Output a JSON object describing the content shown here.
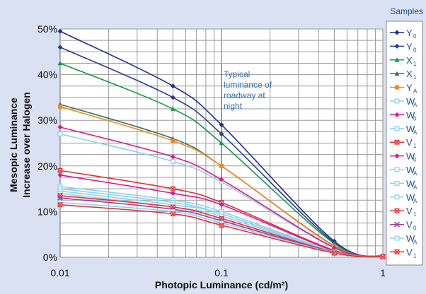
{
  "chart_data": {
    "type": "line",
    "xscale": "log",
    "xlim": [
      0.01,
      1
    ],
    "ylim": [
      0,
      50
    ],
    "x_ticks": [
      {
        "v": 0.01,
        "label": "0.01"
      },
      {
        "v": 0.1,
        "label": "0.1"
      },
      {
        "v": 1,
        "label": "1"
      }
    ],
    "y_ticks": [
      {
        "v": 0,
        "label": "0%"
      },
      {
        "v": 10,
        "label": "10%"
      },
      {
        "v": 20,
        "label": "20%"
      },
      {
        "v": 30,
        "label": "30%"
      },
      {
        "v": 40,
        "label": "40%"
      },
      {
        "v": 50,
        "label": "50%"
      }
    ],
    "xlabel": "Photopic Luminance (cd/m²)",
    "ylabel_lines": [
      "Mesopic Luminance",
      "Increase over Halogen"
    ],
    "legend_title": "Samples",
    "legend_position": "right",
    "grid": true,
    "annotation": {
      "x": 0.1,
      "lines": [
        "Typical",
        "luminance of",
        "roadway at",
        "night"
      ]
    },
    "x": [
      0.01,
      0.05,
      0.1,
      0.5,
      1
    ],
    "series": [
      {
        "name": "Y",
        "sub": "0",
        "color": "#1f2e8c",
        "marker": "diamond",
        "values": [
          49.5,
          37.5,
          29.0,
          3.5,
          0.2
        ]
      },
      {
        "name": "Y",
        "sub": "0",
        "color": "#2c3a96",
        "marker": "diamond",
        "values": [
          46.0,
          35.0,
          27.0,
          3.2,
          0.2
        ]
      },
      {
        "name": "X",
        "sub": "1",
        "color": "#119a49",
        "marker": "triangle",
        "values": [
          42.5,
          32.5,
          25.0,
          3.0,
          0.2
        ]
      },
      {
        "name": "X",
        "sub": "1",
        "color": "#3f6f6a",
        "marker": "triangle",
        "values": [
          33.5,
          26.0,
          20.0,
          2.5,
          0.2
        ]
      },
      {
        "name": "Y",
        "sub": "A",
        "color": "#f08a1c",
        "marker": "square",
        "values": [
          33.0,
          25.5,
          20.0,
          2.4,
          0.2
        ]
      },
      {
        "name": "W",
        "sub": "A",
        "color": "#8fd0ee",
        "marker": "open-square",
        "values": [
          27.0,
          21.0,
          16.5,
          2.0,
          0.2
        ]
      },
      {
        "name": "W",
        "sub": "0",
        "color": "#e0168f",
        "marker": "diamond",
        "values": [
          28.5,
          22.0,
          17.0,
          2.1,
          0.2
        ]
      },
      {
        "name": "W",
        "sub": "A",
        "color": "#8fd0ee",
        "marker": "open-square",
        "values": [
          15.5,
          12.5,
          10.0,
          1.3,
          0.1
        ]
      },
      {
        "name": "V",
        "sub": "1",
        "color": "#e03030",
        "marker": "x-square",
        "values": [
          19.0,
          15.0,
          12.0,
          1.5,
          0.1
        ]
      },
      {
        "name": "W",
        "sub": "0",
        "color": "#d8179a",
        "marker": "diamond",
        "values": [
          18.0,
          14.0,
          11.5,
          1.4,
          0.1
        ]
      },
      {
        "name": "W",
        "sub": "A",
        "color": "#8fd0ee",
        "marker": "open-square",
        "values": [
          15.0,
          12.0,
          9.5,
          1.2,
          0.1
        ]
      },
      {
        "name": "W",
        "sub": "A",
        "color": "#8fd0ee",
        "marker": "open-square",
        "values": [
          14.5,
          11.5,
          9.5,
          1.2,
          0.1
        ]
      },
      {
        "name": "W",
        "sub": "A",
        "color": "#8fd0ee",
        "marker": "open-square",
        "values": [
          14.0,
          11.0,
          9.0,
          1.1,
          0.1
        ]
      },
      {
        "name": "V",
        "sub": "1",
        "color": "#e03030",
        "marker": "x-square",
        "values": [
          13.5,
          11.0,
          8.5,
          1.1,
          0.1
        ]
      },
      {
        "name": "V",
        "sub": "0",
        "color": "#9b3ba0",
        "marker": "x",
        "values": [
          13.0,
          10.5,
          8.0,
          1.0,
          0.1
        ]
      },
      {
        "name": "W",
        "sub": "A",
        "color": "#8fd0ee",
        "marker": "open-square",
        "values": [
          12.0,
          10.0,
          7.5,
          1.0,
          0.1
        ]
      },
      {
        "name": "V",
        "sub": "1",
        "color": "#e03030",
        "marker": "x-square",
        "values": [
          11.5,
          9.5,
          7.0,
          0.9,
          0.1
        ]
      }
    ]
  }
}
